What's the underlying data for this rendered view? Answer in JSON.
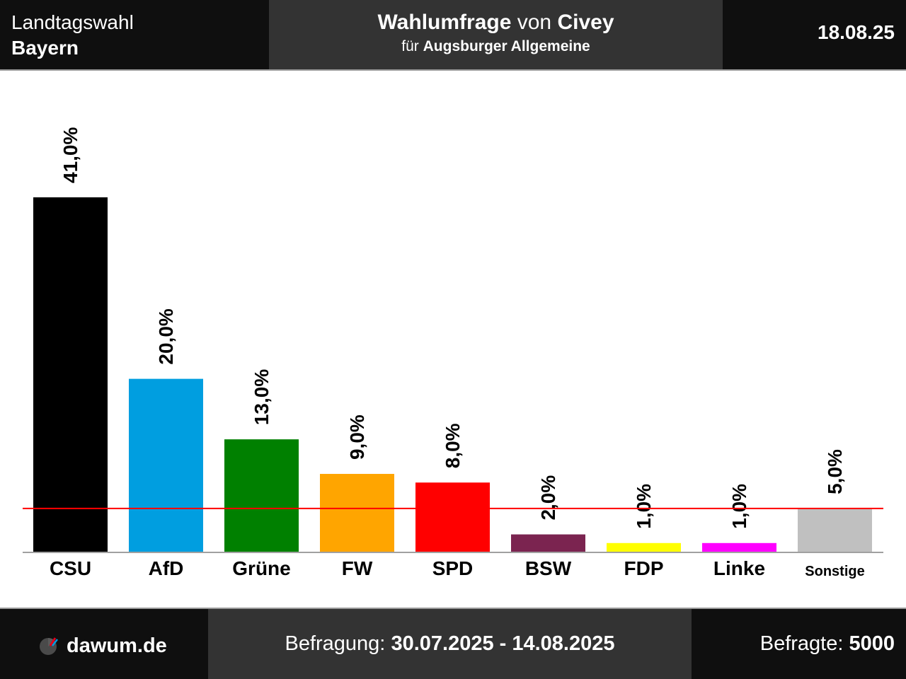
{
  "header": {
    "election": "Landtagswahl",
    "region": "Bayern",
    "poll_word": "Wahlumfrage",
    "von": "von",
    "institute": "Civey",
    "fuer": "für",
    "client": "Augsburger Allgemeine",
    "date": "18.08.25"
  },
  "footer": {
    "brand": "dawum.de",
    "survey_label": "Befragung:",
    "survey_period": "30.07.2025 - 14.08.2025",
    "respondents_label": "Befragte:",
    "respondents": "5000"
  },
  "chart_data": {
    "type": "bar",
    "categories": [
      "CSU",
      "AfD",
      "Grüne",
      "FW",
      "SPD",
      "BSW",
      "FDP",
      "Linke",
      "Sonstige"
    ],
    "values": [
      41.0,
      20.0,
      13.0,
      9.0,
      8.0,
      2.0,
      1.0,
      1.0,
      5.0
    ],
    "value_labels": [
      "41,0%",
      "20,0%",
      "13,0%",
      "9,0%",
      "8,0%",
      "2,0%",
      "1,0%",
      "1,0%",
      "5,0%"
    ],
    "colors": [
      "#000000",
      "#009ee0",
      "#008000",
      "#ffa500",
      "#ff0000",
      "#7b2450",
      "#ffff00",
      "#ff00ff",
      "#c0c0c0"
    ],
    "threshold": 5.0,
    "threshold_color": "#ff0000",
    "ylim": [
      0,
      41.0
    ],
    "grid": false,
    "title": "",
    "xlabel": "",
    "ylabel": ""
  }
}
